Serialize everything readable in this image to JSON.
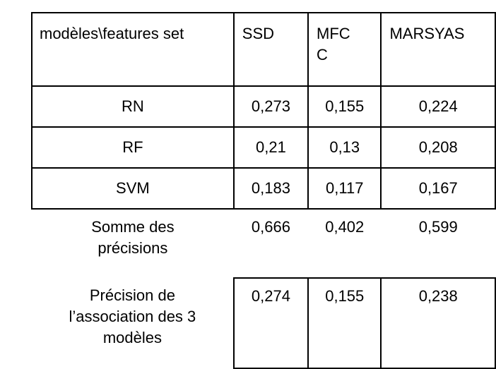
{
  "table": {
    "header": {
      "label": "modèles\\features set",
      "columns": [
        "SSD",
        "MFC\nC",
        "MARSYAS"
      ]
    },
    "rows": [
      {
        "label": "RN",
        "values": [
          "0,273",
          "0,155",
          "0,224"
        ]
      },
      {
        "label": "RF",
        "values": [
          "0,21",
          "0,13",
          "0,208"
        ]
      },
      {
        "label": "SVM",
        "values": [
          "0,183",
          "0,117",
          "0,167"
        ]
      }
    ],
    "sum": {
      "label": "Somme des\nprécisions",
      "values": [
        "0,666",
        "0,402",
        "0,599"
      ]
    },
    "association": {
      "label": "Précision de\nl’association des 3\nmodèles",
      "values": [
        "0,274",
        "0,155",
        "0,238"
      ]
    }
  }
}
